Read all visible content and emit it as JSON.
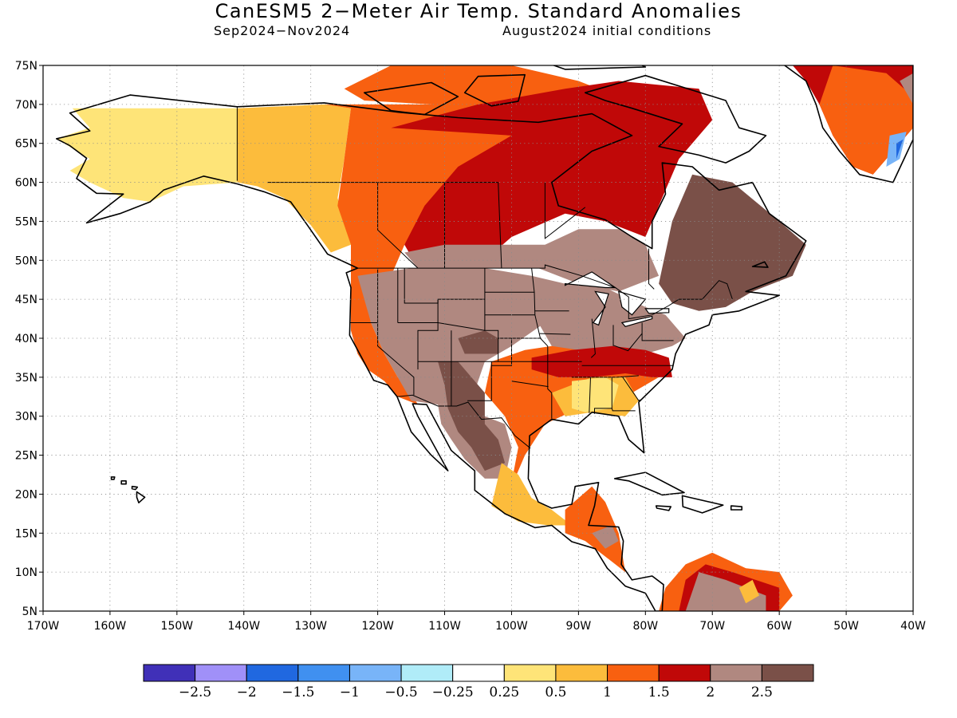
{
  "title": "CanESM5 2−Meter Air Temp. Standard Anomalies",
  "subtitle_left": "Sep2024−Nov2024",
  "subtitle_right": "August2024 initial conditions",
  "map": {
    "projection": "equirectangular",
    "lon_range": [
      -170,
      -40
    ],
    "lat_range": [
      5,
      75
    ],
    "grid": "dotted",
    "lat_ticks": [
      "75N",
      "70N",
      "65N",
      "60N",
      "55N",
      "50N",
      "45N",
      "40N",
      "35N",
      "30N",
      "25N",
      "20N",
      "15N",
      "10N",
      "5N"
    ],
    "lon_ticks": [
      "170W",
      "160W",
      "150W",
      "140W",
      "130W",
      "120W",
      "110W",
      "100W",
      "90W",
      "80W",
      "70W",
      "60W",
      "50W",
      "40W"
    ]
  },
  "colorbar": {
    "colors": [
      "#4030b8",
      "#a090f8",
      "#2068e0",
      "#4090f0",
      "#78b4f8",
      "#b0ecf8",
      "#ffffff",
      "#fee478",
      "#fcbc3c",
      "#f86010",
      "#c00808",
      "#b08880",
      "#7a5048"
    ],
    "labels": [
      "−2.5",
      "−2",
      "−1.5",
      "−1",
      "−0.5",
      "−0.25",
      "0.25",
      "0.5",
      "1",
      "1.5",
      "2",
      "2.5"
    ]
  },
  "regions": [
    {
      "name": "alaska-light-yellow",
      "color": "#fee478",
      "points": [
        [
          -165.6,
          69.5
        ],
        [
          -141,
          69.5
        ],
        [
          -141,
          60
        ],
        [
          -149,
          59.5
        ],
        [
          -154,
          57.5
        ],
        [
          -158,
          58
        ],
        [
          -163,
          60
        ],
        [
          -166,
          61.5
        ],
        [
          -163,
          63
        ],
        [
          -168,
          65.6
        ],
        [
          -163,
          67
        ]
      ]
    },
    {
      "name": "yukon-nwt-yellow-orange",
      "color": "#fcbc3c",
      "points": [
        [
          -141,
          69.5
        ],
        [
          -128,
          70
        ],
        [
          -124,
          69.5
        ],
        [
          -125,
          63
        ],
        [
          -126,
          58
        ],
        [
          -124,
          52
        ],
        [
          -127,
          51
        ],
        [
          -130,
          54.5
        ],
        [
          -134,
          58
        ],
        [
          -138,
          59.5
        ],
        [
          -141,
          60
        ]
      ]
    },
    {
      "name": "western-canada-orange",
      "color": "#f86010",
      "points": [
        [
          -128,
          70
        ],
        [
          -110,
          70
        ],
        [
          -98,
          67
        ],
        [
          -106,
          62
        ],
        [
          -112,
          57
        ],
        [
          -116,
          52
        ],
        [
          -118,
          48
        ],
        [
          -122,
          46
        ],
        [
          -124,
          43
        ],
        [
          -124,
          48
        ],
        [
          -124,
          52
        ],
        [
          -126,
          57
        ],
        [
          -125,
          63
        ],
        [
          -124,
          69.5
        ]
      ]
    },
    {
      "name": "canadian-arctic-archipelago-orange",
      "color": "#f86010",
      "points": [
        [
          -125,
          72
        ],
        [
          -118,
          75
        ],
        [
          -100,
          75
        ],
        [
          -90,
          73
        ],
        [
          -84,
          71
        ],
        [
          -88,
          69
        ],
        [
          -100,
          68
        ],
        [
          -112,
          70
        ],
        [
          -122,
          70.5
        ]
      ]
    },
    {
      "name": "west-coast-us-orange",
      "color": "#f86010",
      "points": [
        [
          -124,
          48
        ],
        [
          -122,
          46
        ],
        [
          -121,
          42
        ],
        [
          -119,
          38
        ],
        [
          -117,
          35
        ],
        [
          -115,
          33
        ],
        [
          -114,
          31.5
        ],
        [
          -117,
          32.5
        ],
        [
          -119,
          34.5
        ],
        [
          -121.5,
          36
        ],
        [
          -123,
          38
        ],
        [
          -124,
          41
        ]
      ]
    },
    {
      "name": "canada-dark-red",
      "color": "#c00808",
      "points": [
        [
          -118,
          67
        ],
        [
          -105,
          70
        ],
        [
          -92,
          72
        ],
        [
          -84,
          73
        ],
        [
          -72,
          72
        ],
        [
          -70,
          68
        ],
        [
          -75,
          63
        ],
        [
          -78,
          57
        ],
        [
          -80,
          53
        ],
        [
          -86,
          55
        ],
        [
          -92,
          56
        ],
        [
          -100,
          53
        ],
        [
          -104,
          50
        ],
        [
          -108,
          49
        ],
        [
          -114,
          49
        ],
        [
          -116,
          52
        ],
        [
          -113,
          57
        ],
        [
          -108,
          62
        ],
        [
          -100,
          66
        ]
      ]
    },
    {
      "name": "central-canada-light-brown",
      "color": "#b08880",
      "points": [
        [
          -116,
          51
        ],
        [
          -110,
          52
        ],
        [
          -102,
          52
        ],
        [
          -95,
          52
        ],
        [
          -90,
          54
        ],
        [
          -84,
          54
        ],
        [
          -80,
          52
        ],
        [
          -78,
          48
        ],
        [
          -84,
          46
        ],
        [
          -90,
          47
        ],
        [
          -96,
          49
        ],
        [
          -104,
          49
        ],
        [
          -110,
          49
        ],
        [
          -114,
          49
        ]
      ]
    },
    {
      "name": "southwest-us-light-brown",
      "color": "#b08880",
      "points": [
        [
          -123,
          48
        ],
        [
          -115,
          49
        ],
        [
          -104,
          49
        ],
        [
          -97,
          48
        ],
        [
          -95,
          45
        ],
        [
          -95,
          42
        ],
        [
          -100,
          39
        ],
        [
          -104,
          37
        ],
        [
          -106,
          32
        ],
        [
          -111,
          31.5
        ],
        [
          -115,
          32
        ],
        [
          -117,
          35
        ],
        [
          -119,
          38
        ],
        [
          -121,
          42
        ]
      ]
    },
    {
      "name": "great-lakes-light-brown",
      "color": "#b08880",
      "points": [
        [
          -97,
          48
        ],
        [
          -92,
          47
        ],
        [
          -86,
          46.5
        ],
        [
          -80,
          44
        ],
        [
          -77,
          43
        ],
        [
          -74,
          40
        ],
        [
          -76,
          39
        ],
        [
          -80,
          38
        ],
        [
          -85,
          38
        ],
        [
          -89,
          38
        ],
        [
          -94,
          39
        ],
        [
          -96,
          42
        ]
      ]
    },
    {
      "name": "mexico-light-brown",
      "color": "#b08880",
      "points": [
        [
          -111,
          31.5
        ],
        [
          -106,
          32
        ],
        [
          -104,
          30
        ],
        [
          -101,
          29
        ],
        [
          -100,
          26
        ],
        [
          -101,
          22
        ],
        [
          -104,
          22
        ],
        [
          -107,
          24.5
        ],
        [
          -109,
          27
        ],
        [
          -110.5,
          29
        ]
      ]
    },
    {
      "name": "four-corners-dark-brown",
      "color": "#7a5048",
      "points": [
        [
          -111,
          37
        ],
        [
          -108,
          37
        ],
        [
          -106,
          35
        ],
        [
          -104,
          33
        ],
        [
          -104,
          29
        ],
        [
          -102,
          27
        ],
        [
          -101,
          24
        ],
        [
          -104,
          23
        ],
        [
          -106,
          26
        ],
        [
          -108,
          28
        ],
        [
          -109.5,
          31
        ],
        [
          -110,
          34
        ]
      ]
    },
    {
      "name": "colorado-dark-brown",
      "color": "#7a5048",
      "points": [
        [
          -108,
          40
        ],
        [
          -104,
          41
        ],
        [
          -102,
          40
        ],
        [
          -102,
          38
        ],
        [
          -104,
          38
        ],
        [
          -107,
          38
        ]
      ]
    },
    {
      "name": "quebec-dark-brown",
      "color": "#7a5048",
      "points": [
        [
          -78,
          47
        ],
        [
          -76,
          55
        ],
        [
          -73,
          61
        ],
        [
          -67,
          60
        ],
        [
          -60,
          55
        ],
        [
          -56,
          52
        ],
        [
          -58,
          48
        ],
        [
          -64,
          46
        ],
        [
          -68,
          44
        ],
        [
          -72,
          43.5
        ],
        [
          -76,
          44.5
        ]
      ]
    },
    {
      "name": "southern-us-orange-band",
      "color": "#f86010",
      "points": [
        [
          -103,
          37
        ],
        [
          -98,
          38.5
        ],
        [
          -94,
          39
        ],
        [
          -90,
          38.5
        ],
        [
          -84,
          37.5
        ],
        [
          -78,
          37
        ],
        [
          -76,
          36
        ],
        [
          -80,
          34
        ],
        [
          -84,
          32
        ],
        [
          -90,
          31
        ],
        [
          -95,
          29
        ],
        [
          -98,
          25
        ],
        [
          -100,
          21
        ],
        [
          -103,
          19.5
        ],
        [
          -100,
          21.5
        ],
        [
          -99,
          26
        ],
        [
          -101,
          30
        ],
        [
          -104,
          33
        ]
      ]
    },
    {
      "name": "southeast-us-dark-red",
      "color": "#c00808",
      "points": [
        [
          -97,
          37.5
        ],
        [
          -91,
          38.5
        ],
        [
          -85,
          39
        ],
        [
          -80,
          38.5
        ],
        [
          -76.5,
          37.5
        ],
        [
          -76,
          35
        ],
        [
          -79,
          35
        ],
        [
          -83,
          35.5
        ],
        [
          -88,
          35
        ],
        [
          -93,
          35
        ],
        [
          -97,
          36
        ]
      ]
    },
    {
      "name": "gulf-states-yellow",
      "color": "#fcbc3c",
      "points": [
        [
          -94,
          33
        ],
        [
          -88,
          35
        ],
        [
          -83,
          35
        ],
        [
          -81,
          32
        ],
        [
          -83,
          30
        ],
        [
          -88,
          30.5
        ],
        [
          -92,
          30
        ]
      ]
    },
    {
      "name": "mississippi-light-yellow",
      "color": "#fee478",
      "points": [
        [
          -91,
          34.5
        ],
        [
          -86,
          35
        ],
        [
          -84,
          34
        ],
        [
          -85,
          31
        ],
        [
          -89,
          30.5
        ],
        [
          -91,
          31
        ]
      ]
    },
    {
      "name": "mexico-yellow",
      "color": "#fcbc3c",
      "points": [
        [
          -101.5,
          24
        ],
        [
          -99,
          22.5
        ],
        [
          -97,
          19.5
        ],
        [
          -94,
          18
        ],
        [
          -91,
          16
        ],
        [
          -94.5,
          16
        ],
        [
          -99,
          16.5
        ],
        [
          -103,
          18.5
        ]
      ]
    },
    {
      "name": "central-america-orange",
      "color": "#f86010",
      "points": [
        [
          -92,
          18
        ],
        [
          -88,
          21
        ],
        [
          -86,
          19
        ],
        [
          -84,
          15
        ],
        [
          -83,
          10
        ],
        [
          -86,
          12
        ],
        [
          -89,
          14
        ],
        [
          -92,
          15
        ]
      ]
    },
    {
      "name": "honduras-light-brown",
      "color": "#b08880",
      "points": [
        [
          -88,
          15
        ],
        [
          -85,
          16
        ],
        [
          -84,
          14
        ],
        [
          -86,
          13
        ]
      ]
    },
    {
      "name": "greenland-dark-red",
      "color": "#c00808",
      "points": [
        [
          -58,
          75
        ],
        [
          -40,
          75
        ],
        [
          -40,
          67
        ],
        [
          -44,
          63
        ],
        [
          -46,
          61
        ],
        [
          -49,
          62
        ],
        [
          -52,
          66
        ],
        [
          -54,
          70
        ],
        [
          -56,
          73
        ]
      ]
    },
    {
      "name": "greenland-orange",
      "color": "#f86010",
      "points": [
        [
          -52,
          75
        ],
        [
          -44,
          74
        ],
        [
          -40,
          71
        ],
        [
          -40,
          67
        ],
        [
          -44,
          63
        ],
        [
          -46,
          61
        ],
        [
          -49,
          62
        ],
        [
          -52,
          66
        ],
        [
          -54,
          70
        ]
      ]
    },
    {
      "name": "greenland-light-brown",
      "color": "#b08880",
      "points": [
        [
          -42,
          73
        ],
        [
          -40,
          74
        ],
        [
          -40,
          70
        ]
      ]
    },
    {
      "name": "greenland-light-blue",
      "color": "#78b4f8",
      "points": [
        [
          -43.5,
          66
        ],
        [
          -41,
          66.5
        ],
        [
          -42,
          63
        ],
        [
          -44,
          62
        ]
      ]
    },
    {
      "name": "greenland-blue",
      "color": "#2068e0",
      "points": [
        [
          -42.5,
          65
        ],
        [
          -41.5,
          65.5
        ],
        [
          -42.5,
          63
        ]
      ]
    },
    {
      "name": "south-america-orange",
      "color": "#f86010",
      "points": [
        [
          -78,
          5
        ],
        [
          -77,
          8
        ],
        [
          -74,
          11
        ],
        [
          -70,
          12.5
        ],
        [
          -65,
          10.5
        ],
        [
          -60,
          10
        ],
        [
          -58,
          7
        ],
        [
          -60,
          5
        ]
      ]
    },
    {
      "name": "south-america-dark-red",
      "color": "#c00808",
      "points": [
        [
          -75,
          5
        ],
        [
          -74,
          9
        ],
        [
          -71,
          11
        ],
        [
          -67,
          10
        ],
        [
          -60,
          8
        ],
        [
          -60,
          5
        ]
      ]
    },
    {
      "name": "south-america-light-brown",
      "color": "#b08880",
      "points": [
        [
          -74,
          5
        ],
        [
          -72,
          10
        ],
        [
          -68,
          9
        ],
        [
          -62,
          7
        ],
        [
          -62,
          5
        ]
      ]
    },
    {
      "name": "venezuela-orange-spot",
      "color": "#fcbc3c",
      "points": [
        [
          -66,
          8
        ],
        [
          -64,
          9
        ],
        [
          -63,
          7
        ],
        [
          -65,
          6
        ]
      ]
    }
  ]
}
